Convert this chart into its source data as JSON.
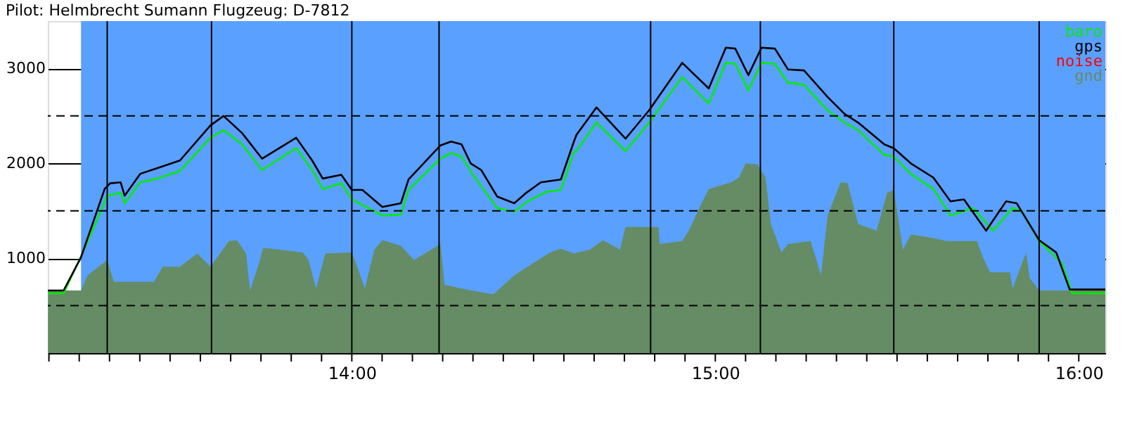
{
  "chart_data": {
    "type": "line",
    "title": "Pilot: Helmbrecht Sumann Flugzeug: D-7812",
    "xlim": [
      13.1636,
      16.073
    ],
    "ylim": [
      0,
      3500
    ],
    "xticks": [
      {
        "value": 13.1667,
        "label": null
      },
      {
        "value": 13.25,
        "label": null
      },
      {
        "value": 13.3333,
        "label": null
      },
      {
        "value": 13.4167,
        "label": null
      },
      {
        "value": 13.5,
        "label": null
      },
      {
        "value": 13.5833,
        "label": null
      },
      {
        "value": 13.6667,
        "label": null
      },
      {
        "value": 13.75,
        "label": null
      },
      {
        "value": 13.8333,
        "label": null
      },
      {
        "value": 13.9167,
        "label": null
      },
      {
        "value": 14,
        "label": "14:00"
      },
      {
        "value": 14.0833,
        "label": null
      },
      {
        "value": 14.1667,
        "label": null
      },
      {
        "value": 14.25,
        "label": null
      },
      {
        "value": 14.3333,
        "label": null
      },
      {
        "value": 14.4167,
        "label": null
      },
      {
        "value": 14.5,
        "label": null
      },
      {
        "value": 14.5833,
        "label": null
      },
      {
        "value": 14.6667,
        "label": null
      },
      {
        "value": 14.75,
        "label": null
      },
      {
        "value": 14.8333,
        "label": null
      },
      {
        "value": 14.9167,
        "label": null
      },
      {
        "value": 15,
        "label": "15:00"
      },
      {
        "value": 15.0833,
        "label": null
      },
      {
        "value": 15.1667,
        "label": null
      },
      {
        "value": 15.25,
        "label": null
      },
      {
        "value": 15.3333,
        "label": null
      },
      {
        "value": 15.4167,
        "label": null
      },
      {
        "value": 15.5,
        "label": null
      },
      {
        "value": 15.5833,
        "label": null
      },
      {
        "value": 15.6667,
        "label": null
      },
      {
        "value": 15.75,
        "label": null
      },
      {
        "value": 15.8333,
        "label": null
      },
      {
        "value": 15.9167,
        "label": null
      },
      {
        "value": 16,
        "label": "16:00"
      }
    ],
    "yticks": [
      1000,
      2000,
      3000
    ],
    "grid": "y",
    "legend": "top right",
    "marker": "none",
    "line_style": "solid",
    "bands": [
      {
        "axis": "x",
        "from": 13.255,
        "to": 16.073,
        "color": "#5aa0ff"
      }
    ],
    "ref_lines": [
      {
        "axis": "y",
        "value": 500,
        "line_style": "dashed",
        "color": "#000000"
      },
      {
        "axis": "y",
        "value": 1500,
        "line_style": "dashed",
        "color": "#000000"
      },
      {
        "axis": "y",
        "value": 2500,
        "line_style": "dashed",
        "color": "#000000"
      },
      {
        "axis": "x",
        "value": 13.327,
        "color": "#000000"
      },
      {
        "axis": "x",
        "value": 13.614,
        "color": "#000000"
      },
      {
        "axis": "x",
        "value": 14.0,
        "color": "#000000"
      },
      {
        "axis": "x",
        "value": 14.24,
        "color": "#000000"
      },
      {
        "axis": "x",
        "value": 14.822,
        "color": "#000000"
      },
      {
        "axis": "x",
        "value": 15.124,
        "color": "#000000"
      },
      {
        "axis": "x",
        "value": 15.491,
        "color": "#000000"
      },
      {
        "axis": "x",
        "value": 15.891,
        "color": "#000000"
      }
    ],
    "series": [
      {
        "name": "baro",
        "color": "#00ee00",
        "x": [
          13.164,
          13.207,
          13.255,
          13.309,
          13.327,
          13.364,
          13.375,
          13.418,
          13.465,
          13.527,
          13.611,
          13.647,
          13.698,
          13.753,
          13.847,
          13.891,
          13.92,
          13.971,
          14.0,
          14.084,
          14.135,
          14.156,
          14.244,
          14.273,
          14.302,
          14.335,
          14.4,
          14.447,
          14.484,
          14.535,
          14.575,
          14.611,
          14.618,
          14.673,
          14.753,
          14.818,
          14.909,
          14.982,
          15.029,
          15.055,
          15.091,
          15.127,
          15.164,
          15.2,
          15.244,
          15.309,
          15.356,
          15.393,
          15.465,
          15.491,
          15.538,
          15.6,
          15.647,
          15.709,
          15.764,
          15.818,
          15.844,
          15.891,
          15.953,
          15.982,
          16.073
        ],
        "values": [
          630,
          630,
          1020,
          1490,
          1660,
          1690,
          1580,
          1800,
          1840,
          1920,
          2270,
          2350,
          2200,
          1930,
          2160,
          1930,
          1730,
          1790,
          1620,
          1450,
          1460,
          1720,
          2050,
          2110,
          2070,
          1870,
          1530,
          1490,
          1600,
          1700,
          1720,
          2120,
          2130,
          2430,
          2130,
          2430,
          2910,
          2630,
          3060,
          3050,
          2770,
          3060,
          3050,
          2850,
          2830,
          2560,
          2430,
          2350,
          2090,
          2070,
          1890,
          1730,
          1450,
          1530,
          1290,
          1530,
          1490,
          1180,
          950,
          630,
          630
        ]
      },
      {
        "name": "gps",
        "color": "#000000",
        "x": [
          13.164,
          13.207,
          13.255,
          13.32,
          13.335,
          13.364,
          13.375,
          13.418,
          13.465,
          13.527,
          13.611,
          13.647,
          13.698,
          13.753,
          13.847,
          13.891,
          13.92,
          13.971,
          14.0,
          14.029,
          14.084,
          14.135,
          14.156,
          14.244,
          14.273,
          14.302,
          14.327,
          14.356,
          14.4,
          14.447,
          14.48,
          14.52,
          14.575,
          14.611,
          14.618,
          14.673,
          14.753,
          14.818,
          14.909,
          14.982,
          15.029,
          15.055,
          15.091,
          15.127,
          15.164,
          15.2,
          15.244,
          15.309,
          15.356,
          15.393,
          15.465,
          15.491,
          15.538,
          15.6,
          15.647,
          15.684,
          15.745,
          15.8,
          15.829,
          15.891,
          15.938,
          15.975,
          16.073
        ],
        "values": [
          660,
          660,
          1010,
          1730,
          1790,
          1800,
          1660,
          1890,
          1950,
          2030,
          2400,
          2500,
          2320,
          2050,
          2270,
          2030,
          1840,
          1880,
          1720,
          1720,
          1540,
          1580,
          1830,
          2190,
          2230,
          2200,
          2000,
          1930,
          1650,
          1580,
          1690,
          1800,
          1830,
          2230,
          2300,
          2590,
          2260,
          2560,
          3060,
          2790,
          3220,
          3210,
          2930,
          3220,
          3210,
          2990,
          2980,
          2700,
          2520,
          2430,
          2200,
          2160,
          2000,
          1850,
          1600,
          1620,
          1290,
          1600,
          1580,
          1190,
          1060,
          670,
          670
        ]
      },
      {
        "name": "noise",
        "color": "#ff0000"
      },
      {
        "name": "gnd",
        "color": "#658c64",
        "type": "area",
        "x": [
          13.164,
          13.255,
          13.273,
          13.327,
          13.345,
          13.455,
          13.48,
          13.527,
          13.575,
          13.611,
          13.662,
          13.684,
          13.709,
          13.72,
          13.745,
          13.756,
          13.865,
          13.88,
          13.902,
          13.927,
          14.0,
          14.011,
          14.036,
          14.062,
          14.084,
          14.135,
          14.171,
          14.244,
          14.255,
          14.327,
          14.389,
          14.447,
          14.545,
          14.575,
          14.611,
          14.655,
          14.691,
          14.738,
          14.753,
          14.844,
          14.847,
          14.909,
          14.927,
          14.956,
          14.982,
          15.044,
          15.065,
          15.084,
          15.116,
          15.138,
          15.153,
          15.182,
          15.2,
          15.262,
          15.291,
          15.309,
          15.345,
          15.364,
          15.393,
          15.444,
          15.473,
          15.491,
          15.516,
          15.538,
          15.589,
          15.636,
          15.72,
          15.735,
          15.756,
          15.811,
          15.818,
          15.855,
          15.865,
          15.891,
          16.073
        ],
        "values": [
          660,
          660,
          820,
          980,
          750,
          750,
          910,
          910,
          1050,
          910,
          1180,
          1190,
          1050,
          660,
          950,
          1110,
          1060,
          990,
          680,
          1050,
          1060,
          950,
          680,
          1090,
          1190,
          1130,
          980,
          1150,
          720,
          660,
          620,
          820,
          1060,
          1100,
          1050,
          1090,
          1190,
          1090,
          1330,
          1330,
          1150,
          1180,
          1290,
          1530,
          1730,
          1800,
          1850,
          2000,
          1990,
          1850,
          1360,
          1060,
          1150,
          1180,
          820,
          1450,
          1800,
          1790,
          1360,
          1290,
          1690,
          1720,
          1090,
          1250,
          1220,
          1180,
          1180,
          1020,
          850,
          850,
          680,
          1060,
          790,
          660,
          660
        ]
      }
    ]
  }
}
